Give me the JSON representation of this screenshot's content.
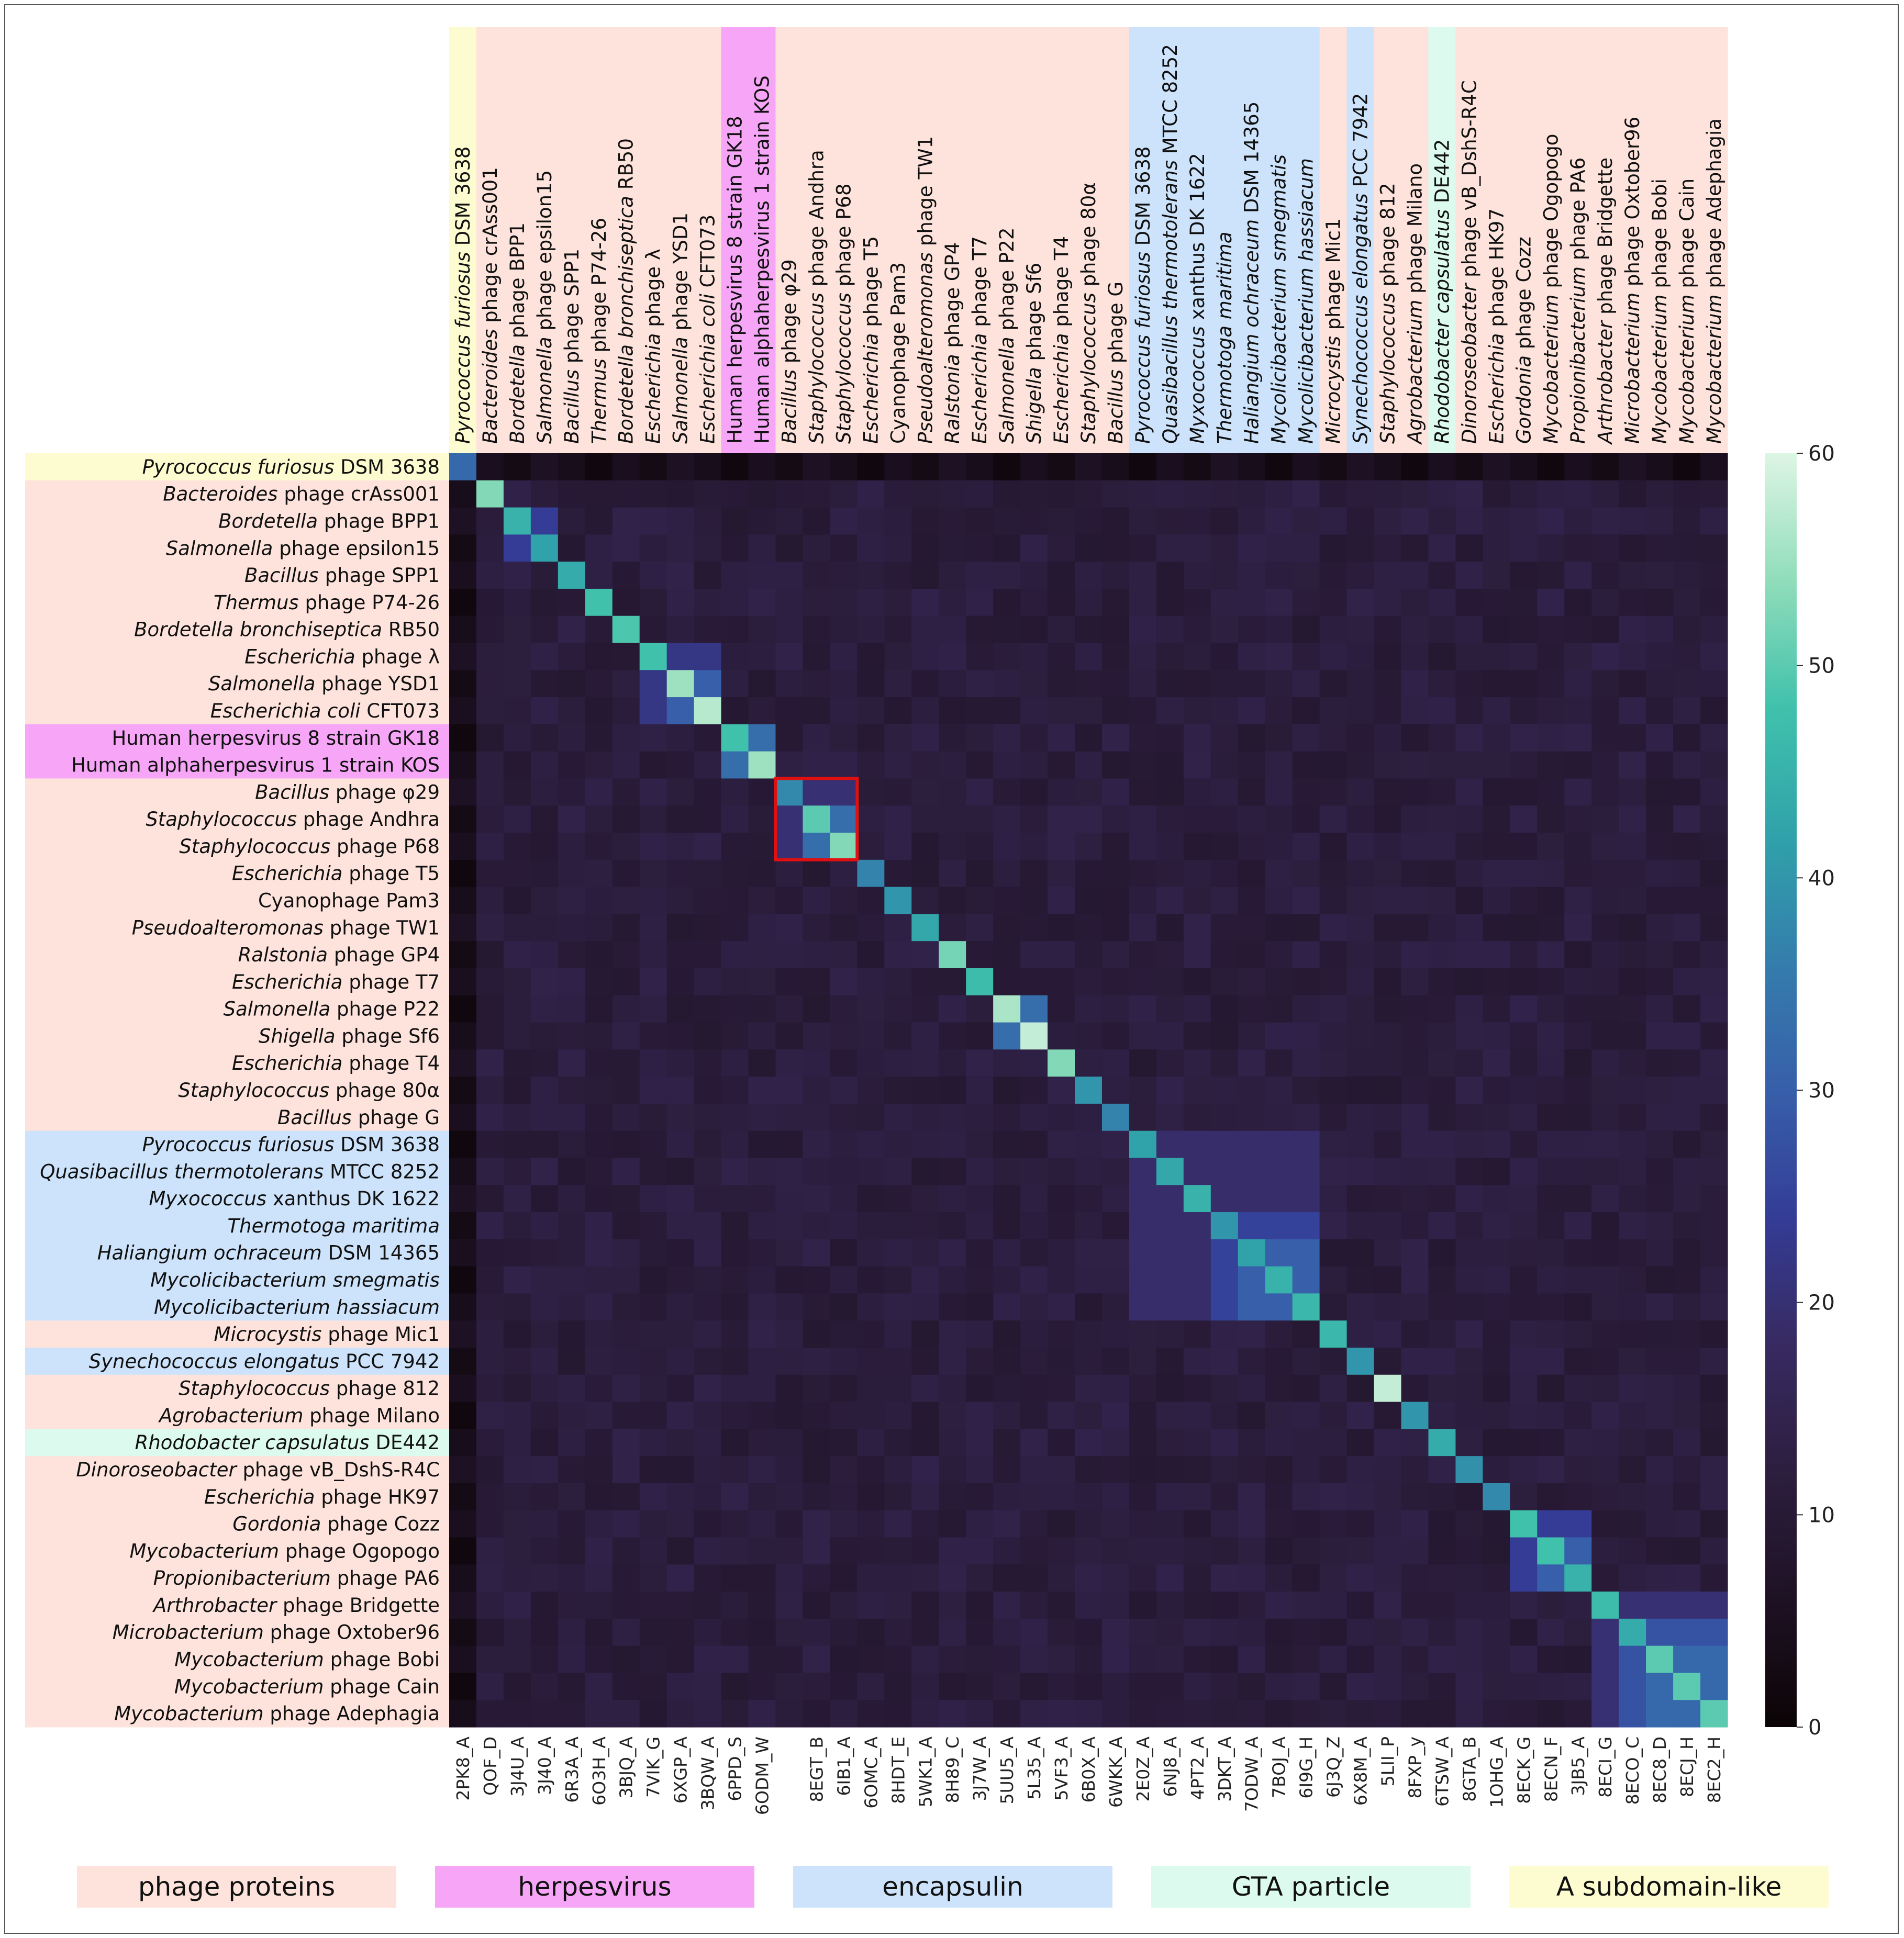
{
  "chart_data": {
    "type": "heatmap",
    "title": "",
    "colorbar": {
      "min": 0,
      "max": 60,
      "ticks": [
        "0",
        "10",
        "20",
        "30",
        "40",
        "50",
        "60"
      ]
    },
    "categories": [
      {
        "code": "2PK8_A",
        "label": [
          {
            "t": "Pyrococcus furiosus",
            "i": true
          },
          {
            "t": " DSM 3638",
            "i": false
          }
        ],
        "group": "asub"
      },
      {
        "code": "QOF_D",
        "label": [
          {
            "t": "Bacteroides",
            "i": true
          },
          {
            "t": " phage crAss001",
            "i": false
          }
        ],
        "group": "phage"
      },
      {
        "code": "3J4U_A",
        "label": [
          {
            "t": "Bordetella",
            "i": true
          },
          {
            "t": " phage BPP1",
            "i": false
          }
        ],
        "group": "phage"
      },
      {
        "code": "3J40_A",
        "label": [
          {
            "t": "Salmonella",
            "i": true
          },
          {
            "t": " phage epsilon15",
            "i": false
          }
        ],
        "group": "phage"
      },
      {
        "code": "6R3A_A",
        "label": [
          {
            "t": "Bacillus",
            "i": true
          },
          {
            "t": " phage SPP1",
            "i": false
          }
        ],
        "group": "phage"
      },
      {
        "code": "6O3H_A",
        "label": [
          {
            "t": "Thermus",
            "i": true
          },
          {
            "t": " phage P74-26",
            "i": false
          }
        ],
        "group": "phage"
      },
      {
        "code": "3BJQ_A",
        "label": [
          {
            "t": "Bordetella bronchiseptica",
            "i": true
          },
          {
            "t": " RB50",
            "i": false
          }
        ],
        "group": "phage"
      },
      {
        "code": "7VIK_G",
        "label": [
          {
            "t": "Escherichia",
            "i": true
          },
          {
            "t": " phage λ",
            "i": false
          }
        ],
        "group": "phage"
      },
      {
        "code": "6XGP_A",
        "label": [
          {
            "t": "Salmonella",
            "i": true
          },
          {
            "t": " phage YSD1",
            "i": false
          }
        ],
        "group": "phage"
      },
      {
        "code": "3BQW_A",
        "label": [
          {
            "t": "Escherichia coli",
            "i": true
          },
          {
            "t": " CFT073",
            "i": false
          }
        ],
        "group": "phage"
      },
      {
        "code": "6PPD_S",
        "label": [
          {
            "t": "Human herpesvirus 8 strain GK18",
            "i": false
          }
        ],
        "group": "herpes"
      },
      {
        "code": "6ODM_W",
        "label": [
          {
            "t": "Human alphaherpesvirus 1 strain KOS",
            "i": false
          }
        ],
        "group": "herpes"
      },
      {
        "code": "",
        "label": [
          {
            "t": "Bacillus",
            "i": true
          },
          {
            "t": " phage φ29",
            "i": false
          }
        ],
        "group": "phage"
      },
      {
        "code": "8EGT_B",
        "label": [
          {
            "t": "Staphylococcus",
            "i": true
          },
          {
            "t": " phage Andhra",
            "i": false
          }
        ],
        "group": "phage"
      },
      {
        "code": "6IB1_A",
        "label": [
          {
            "t": "Staphylococcus",
            "i": true
          },
          {
            "t": " phage P68",
            "i": false
          }
        ],
        "group": "phage"
      },
      {
        "code": "6OMC_A",
        "label": [
          {
            "t": "Escherichia",
            "i": true
          },
          {
            "t": " phage T5",
            "i": false
          }
        ],
        "group": "phage"
      },
      {
        "code": "8HDT_E",
        "label": [
          {
            "t": "Cyanophage Pam3",
            "i": false
          }
        ],
        "group": "phage"
      },
      {
        "code": "5WK1_A",
        "label": [
          {
            "t": "Pseudoalteromonas",
            "i": true
          },
          {
            "t": " phage TW1",
            "i": false
          }
        ],
        "group": "phage"
      },
      {
        "code": "8H89_C",
        "label": [
          {
            "t": "Ralstonia",
            "i": true
          },
          {
            "t": " phage GP4",
            "i": false
          }
        ],
        "group": "phage"
      },
      {
        "code": "3J7W_A",
        "label": [
          {
            "t": "Escherichia",
            "i": true
          },
          {
            "t": " phage T7",
            "i": false
          }
        ],
        "group": "phage"
      },
      {
        "code": "5UU5_A",
        "label": [
          {
            "t": "Salmonella",
            "i": true
          },
          {
            "t": " phage P22",
            "i": false
          }
        ],
        "group": "phage"
      },
      {
        "code": "5L35_A",
        "label": [
          {
            "t": "Shigella",
            "i": true
          },
          {
            "t": " phage Sf6",
            "i": false
          }
        ],
        "group": "phage"
      },
      {
        "code": "5VF3_A",
        "label": [
          {
            "t": "Escherichia",
            "i": true
          },
          {
            "t": " phage T4",
            "i": false
          }
        ],
        "group": "phage"
      },
      {
        "code": "6B0X_A",
        "label": [
          {
            "t": "Staphylococcus",
            "i": true
          },
          {
            "t": " phage 80α",
            "i": false
          }
        ],
        "group": "phage"
      },
      {
        "code": "6WKK_A",
        "label": [
          {
            "t": "Bacillus",
            "i": true
          },
          {
            "t": " phage G",
            "i": false
          }
        ],
        "group": "phage"
      },
      {
        "code": "2E0Z_A",
        "label": [
          {
            "t": "Pyrococcus furiosus",
            "i": true
          },
          {
            "t": " DSM 3638",
            "i": false
          }
        ],
        "group": "encaps"
      },
      {
        "code": "6NJ8_A",
        "label": [
          {
            "t": "Quasibacillus thermotolerans",
            "i": true
          },
          {
            "t": " MTCC 8252",
            "i": false
          }
        ],
        "group": "encaps"
      },
      {
        "code": "4PT2_A",
        "label": [
          {
            "t": "Myxococcus",
            "i": true
          },
          {
            "t": " xanthus DK 1622",
            "i": false
          }
        ],
        "group": "encaps"
      },
      {
        "code": "3DKT_A",
        "label": [
          {
            "t": "Thermotoga maritima",
            "i": true
          }
        ],
        "group": "encaps"
      },
      {
        "code": "7ODW_A",
        "label": [
          {
            "t": "Haliangium ochraceum",
            "i": true
          },
          {
            "t": " DSM 14365",
            "i": false
          }
        ],
        "group": "encaps"
      },
      {
        "code": "7BOJ_A",
        "label": [
          {
            "t": "Mycolicibacterium smegmatis",
            "i": true
          }
        ],
        "group": "encaps"
      },
      {
        "code": "6I9G_H",
        "label": [
          {
            "t": "Mycolicibacterium hassiacum",
            "i": true
          }
        ],
        "group": "encaps"
      },
      {
        "code": "6J3Q_Z",
        "label": [
          {
            "t": "Microcystis",
            "i": true
          },
          {
            "t": " phage Mic1",
            "i": false
          }
        ],
        "group": "phage"
      },
      {
        "code": "6X8M_A",
        "label": [
          {
            "t": "Synechococcus elongatus",
            "i": true
          },
          {
            "t": " PCC 7942",
            "i": false
          }
        ],
        "group": "encaps"
      },
      {
        "code": "5LII_P",
        "label": [
          {
            "t": "Staphylococcus",
            "i": true
          },
          {
            "t": " phage 812",
            "i": false
          }
        ],
        "group": "phage"
      },
      {
        "code": "8FXP_y",
        "label": [
          {
            "t": "Agrobacterium",
            "i": true
          },
          {
            "t": " phage Milano",
            "i": false
          }
        ],
        "group": "phage"
      },
      {
        "code": "6TSW_A",
        "label": [
          {
            "t": "Rhodobacter capsulatus",
            "i": true
          },
          {
            "t": " DE442",
            "i": false
          }
        ],
        "group": "gta"
      },
      {
        "code": "8GTA_B",
        "label": [
          {
            "t": "Dinoroseobacter",
            "i": true
          },
          {
            "t": " phage vB_DshS-R4C",
            "i": false
          }
        ],
        "group": "phage"
      },
      {
        "code": "1OHG_A",
        "label": [
          {
            "t": "Escherichia",
            "i": true
          },
          {
            "t": " phage HK97",
            "i": false
          }
        ],
        "group": "phage"
      },
      {
        "code": "8ECK_G",
        "label": [
          {
            "t": "Gordonia",
            "i": true
          },
          {
            "t": " phage Cozz",
            "i": false
          }
        ],
        "group": "phage"
      },
      {
        "code": "8ECN_F",
        "label": [
          {
            "t": "Mycobacterium",
            "i": true
          },
          {
            "t": " phage Ogopogo",
            "i": false
          }
        ],
        "group": "phage"
      },
      {
        "code": "3JB5_A",
        "label": [
          {
            "t": "Propionibacterium",
            "i": true
          },
          {
            "t": " phage PA6",
            "i": false
          }
        ],
        "group": "phage"
      },
      {
        "code": "8ECI_G",
        "label": [
          {
            "t": "Arthrobacter",
            "i": true
          },
          {
            "t": " phage Bridgette",
            "i": false
          }
        ],
        "group": "phage"
      },
      {
        "code": "8ECO_C",
        "label": [
          {
            "t": "Microbacterium",
            "i": true
          },
          {
            "t": " phage Oxtober96",
            "i": false
          }
        ],
        "group": "phage"
      },
      {
        "code": "8EC8_D",
        "label": [
          {
            "t": "Mycobacterium",
            "i": true
          },
          {
            "t": " phage Bobi",
            "i": false
          }
        ],
        "group": "phage"
      },
      {
        "code": "8ECJ_H",
        "label": [
          {
            "t": "Mycobacterium",
            "i": true
          },
          {
            "t": " phage Cain",
            "i": false
          }
        ],
        "group": "phage"
      },
      {
        "code": "8EC2_H",
        "label": [
          {
            "t": "Mycobacterium",
            "i": true
          },
          {
            "t": " phage Adephagia",
            "i": false
          }
        ],
        "group": "phage"
      }
    ],
    "diagonal": [
      32,
      53,
      45,
      42,
      44,
      48,
      49,
      48,
      55,
      57,
      48,
      55,
      38,
      50,
      53,
      37,
      40,
      43,
      52,
      47,
      56,
      58,
      53,
      40,
      37,
      42,
      43,
      45,
      40,
      42,
      45,
      46,
      46,
      40,
      58,
      40,
      44,
      39,
      38,
      48,
      48,
      45,
      47,
      44,
      50,
      50,
      50
    ],
    "blocks": [
      {
        "rows": [
          2,
          3
        ],
        "value": 24
      },
      {
        "rows": [
          7,
          9
        ],
        "value": 22
      },
      {
        "rows": [
          8,
          9
        ],
        "value": 30
      },
      {
        "rows": [
          10,
          11
        ],
        "value": 33
      },
      {
        "rows": [
          12,
          14
        ],
        "value": 20
      },
      {
        "rows": [
          13,
          14
        ],
        "value": 33
      },
      {
        "rows": [
          20,
          21
        ],
        "value": 33
      },
      {
        "rows": [
          25,
          31
        ],
        "value": 19
      },
      {
        "rows": [
          28,
          31
        ],
        "value": 25
      },
      {
        "rows": [
          29,
          31
        ],
        "value": 30
      },
      {
        "rows": [
          39,
          41
        ],
        "value": 24
      },
      {
        "rows": [
          40,
          41
        ],
        "value": 30
      },
      {
        "rows": [
          42,
          46
        ],
        "value": 20
      },
      {
        "rows": [
          43,
          46
        ],
        "value": 28
      },
      {
        "rows": [
          44,
          46
        ],
        "value": 32
      }
    ],
    "highlight": {
      "rows": [
        12,
        14
      ],
      "color": "#e01010"
    },
    "groups": {
      "phage": {
        "label": "phage proteins",
        "color": "#fde3dc"
      },
      "herpes": {
        "label": "herpesvirus",
        "color": "#f7a6f7"
      },
      "encaps": {
        "label": "encapsulin",
        "color": "#cde3fb"
      },
      "gta": {
        "label": "GTA particle",
        "color": "#dcfaee"
      },
      "asub": {
        "label": "A subdomain-like",
        "color": "#fdfcd0"
      }
    },
    "legend_order": [
      "phage",
      "herpes",
      "encaps",
      "gta",
      "asub"
    ],
    "legend_position": "bottom"
  }
}
